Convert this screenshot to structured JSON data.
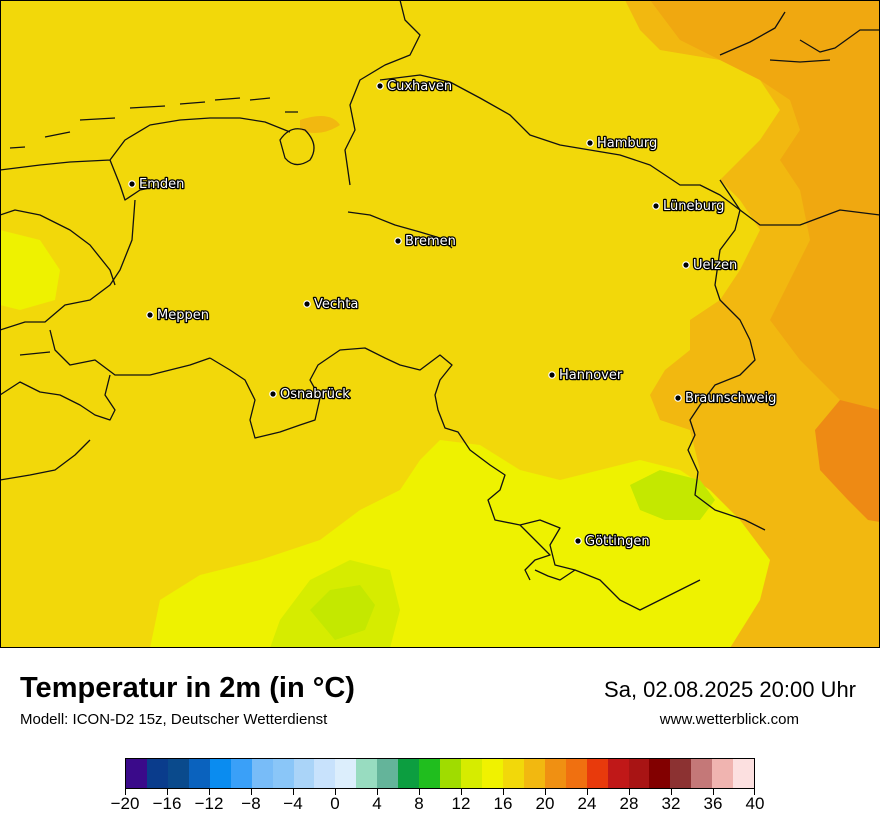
{
  "title": "Temperatur in 2m (in °C)",
  "subtitle": "Modell: ICON-D2 15z, Deutscher Wetterdienst",
  "datetime": "Sa, 02.08.2025 20:00 Uhr",
  "website": "www.wetterblick.com",
  "map": {
    "colors": {
      "base": "#f2d80a",
      "warm": "#f2b810",
      "warmer": "#f0a810",
      "hot": "#ee8a14",
      "cool": "#eef200",
      "cooler": "#d6ec00",
      "coolest": "#c4e800",
      "border": "#111111"
    },
    "cities": [
      {
        "name": "Cuxhaven"
      },
      {
        "name": "Hamburg"
      },
      {
        "name": "Emden"
      },
      {
        "name": "Lüneburg"
      },
      {
        "name": "Bremen"
      },
      {
        "name": "Uelzen"
      },
      {
        "name": "Vechta"
      },
      {
        "name": "Meppen"
      },
      {
        "name": "Osnabrück"
      },
      {
        "name": "Hannover"
      },
      {
        "name": "Braunschweig"
      },
      {
        "name": "Göttingen"
      }
    ]
  },
  "legend": {
    "colors": [
      "#3a0a8a",
      "#0a3c8c",
      "#0a4a8c",
      "#0a62be",
      "#0a8cf0",
      "#3aa0f8",
      "#78bcf8",
      "#8ac6f8",
      "#aad4f8",
      "#c8e2fc",
      "#dceefc",
      "#98dcc0",
      "#64b49a",
      "#0c9e40",
      "#20be1e",
      "#a0dc00",
      "#d6ec00",
      "#f0f200",
      "#f2d80a",
      "#f2b810",
      "#f09012",
      "#f07010",
      "#e83a0c",
      "#c01818",
      "#a81414",
      "#820000",
      "#8c3232",
      "#c47878",
      "#f0b4b0",
      "#fce0e0"
    ],
    "tick_labels": [
      "−20",
      "−16",
      "−12",
      "−8",
      "−4",
      "0",
      "4",
      "8",
      "12",
      "16",
      "20",
      "24",
      "28",
      "32",
      "36",
      "40"
    ]
  }
}
